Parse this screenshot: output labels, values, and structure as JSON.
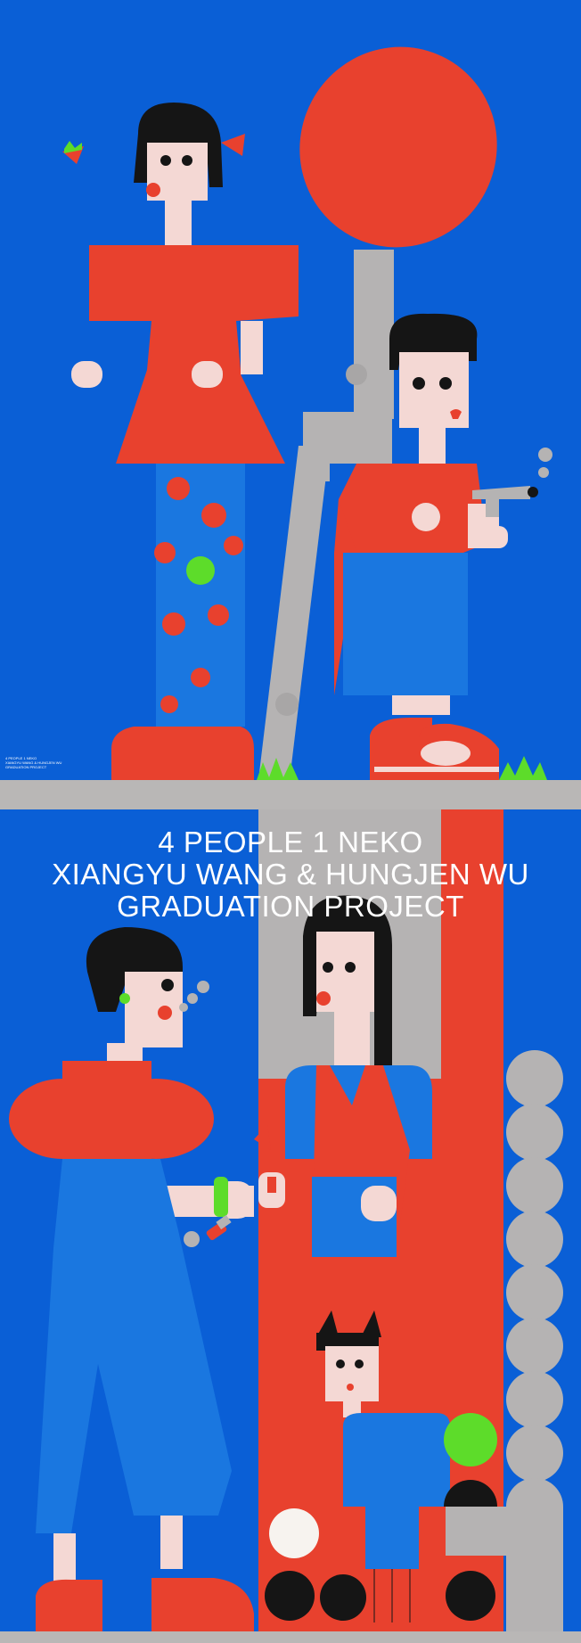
{
  "poster": {
    "title_lines": [
      "4 PEOPLE 1 NEKO",
      "XIANGYU WANG & HUNGJEN WU",
      "GRADUATION PROJECT"
    ],
    "credit_lines": [
      "4 PEOPLE 1 NEKO",
      "XIANGYU WANG & HUNGJEN WU",
      "GRADUATION PROJECT"
    ]
  },
  "palette": {
    "blue": "#0a5fd6",
    "red": "#e8412e",
    "grey": "#b5b3b3",
    "green": "#5ddc2a",
    "skin": "#f4d8d4",
    "black": "#151515",
    "white": "#f7f3ef"
  }
}
